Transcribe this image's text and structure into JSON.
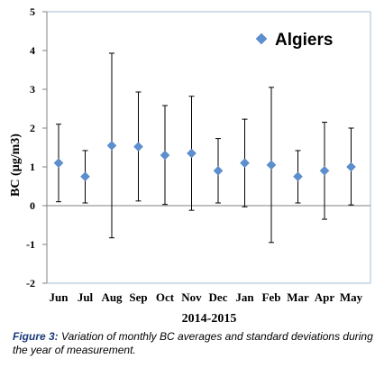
{
  "chart_data": {
    "type": "scatter",
    "title": "",
    "xlabel": "2014-2015",
    "ylabel": "BC (µg/m3)",
    "ylim": [
      -2,
      5
    ],
    "yticks": [
      -2,
      -1,
      0,
      1,
      2,
      3,
      4,
      5
    ],
    "categories": [
      "Jun",
      "Jul",
      "Aug",
      "Sep",
      "Oct",
      "Nov",
      "Dec",
      "Jan",
      "Feb",
      "Mar",
      "Apr",
      "May"
    ],
    "series": [
      {
        "name": "Algiers",
        "color": "#5b8fd0",
        "marker": "diamond",
        "values": [
          1.1,
          0.75,
          1.55,
          1.52,
          1.3,
          1.35,
          0.9,
          1.1,
          1.05,
          0.75,
          0.9,
          1.0
        ],
        "error_upper": [
          2.1,
          1.42,
          3.93,
          2.93,
          2.58,
          2.82,
          1.73,
          2.23,
          3.05,
          1.42,
          2.15,
          2.0
        ],
        "error_lower": [
          0.1,
          0.07,
          -0.83,
          0.12,
          0.03,
          -0.12,
          0.07,
          -0.03,
          -0.95,
          0.07,
          -0.35,
          0.02
        ]
      }
    ],
    "legend_position": "top-right",
    "grid": false
  },
  "caption": {
    "label": "Figure 3:",
    "text": "Variation of monthly BC averages and standard deviations during the year of measurement."
  }
}
